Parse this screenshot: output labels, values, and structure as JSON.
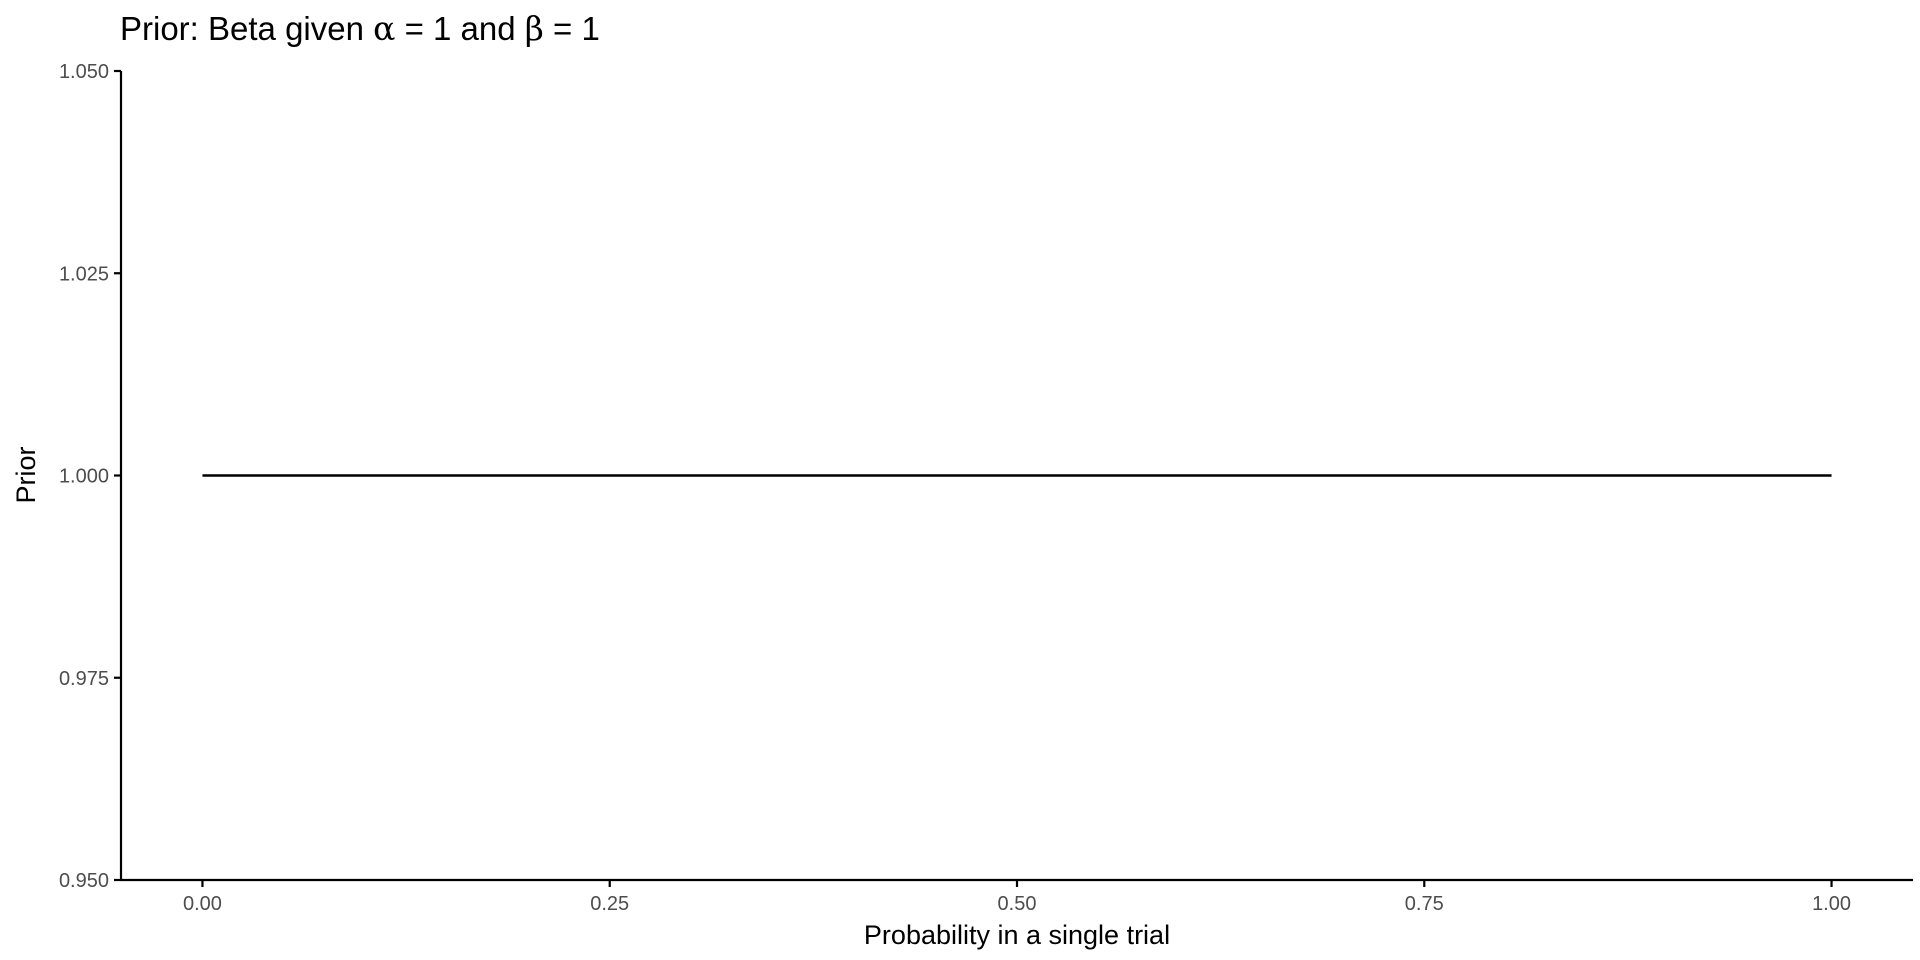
{
  "chart_data": {
    "type": "line",
    "title": {
      "prefix": "Prior: Beta given ",
      "alpha_symbol": "α",
      "middle": " = 1 and ",
      "beta_symbol": "β",
      "suffix": " = 1"
    },
    "xlabel": "Probability in a single trial",
    "ylabel": "Prior",
    "xlim": [
      -0.05,
      1.05
    ],
    "ylim": [
      0.95,
      1.05
    ],
    "x_ticks": [
      0.0,
      0.25,
      0.5,
      0.75,
      1.0
    ],
    "x_tick_labels": [
      "0.00",
      "0.25",
      "0.50",
      "0.75",
      "1.00"
    ],
    "y_ticks": [
      0.95,
      0.975,
      1.0,
      1.025,
      1.05
    ],
    "y_tick_labels": [
      "0.950",
      "0.975",
      "1.000",
      "1.025",
      "1.050"
    ],
    "grid": false,
    "series": [
      {
        "x": [
          0.0,
          0.25,
          0.5,
          0.75,
          1.0
        ],
        "y": [
          1.0,
          1.0,
          1.0,
          1.0,
          1.0
        ],
        "color": "#000000"
      }
    ]
  }
}
